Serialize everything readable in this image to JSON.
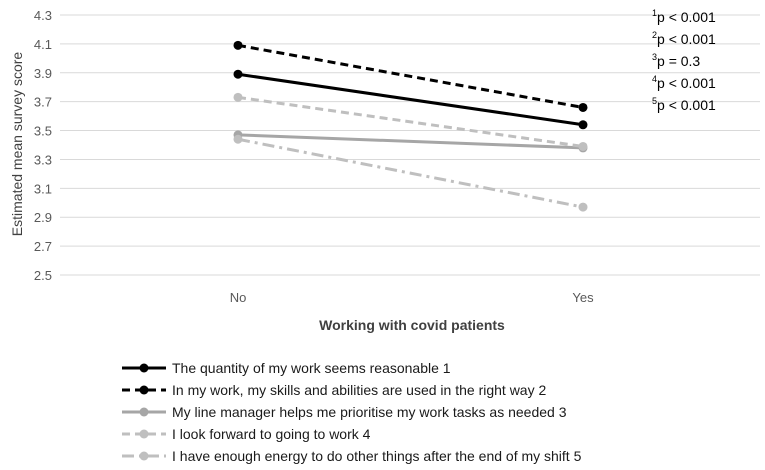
{
  "chart_data": {
    "type": "line",
    "title": "",
    "xlabel": "Working with covid patients",
    "ylabel": "Estimated mean survey score",
    "categories": [
      "No",
      "Yes"
    ],
    "ylim": [
      2.5,
      4.3
    ],
    "yticks": [
      "4.3",
      "4.1",
      "3.9",
      "3.7",
      "3.5",
      "3.3",
      "3.1",
      "2.9",
      "2.7",
      "2.5"
    ],
    "grid": true,
    "legend_position": "bottom",
    "series": [
      {
        "name": "The quantity of my work seems reasonable 1",
        "values": [
          3.89,
          3.54
        ],
        "color": "#000000",
        "dash": "solid"
      },
      {
        "name": "In my work, my skills and abilities are used in the right way 2",
        "values": [
          4.09,
          3.66
        ],
        "color": "#000000",
        "dash": "dash"
      },
      {
        "name": "My line manager helps me prioritise my work tasks as needed 3",
        "values": [
          3.47,
          3.38
        ],
        "color": "#a6a6a6",
        "dash": "solid"
      },
      {
        "name": "I look forward to going to work 4",
        "values": [
          3.73,
          3.39
        ],
        "color": "#bfbfbf",
        "dash": "dash"
      },
      {
        "name": "I have enough energy to do other things after the end of my shift 5",
        "values": [
          3.44,
          2.97
        ],
        "color": "#bfbfbf",
        "dash": "dashdot"
      }
    ],
    "annotations": [
      {
        "sup": "1",
        "text": "p < 0.001"
      },
      {
        "sup": "2",
        "text": "p < 0.001"
      },
      {
        "sup": "3",
        "text": "p = 0.3"
      },
      {
        "sup": "4",
        "text": "p < 0.001"
      },
      {
        "sup": "5",
        "text": "p < 0.001"
      }
    ]
  }
}
